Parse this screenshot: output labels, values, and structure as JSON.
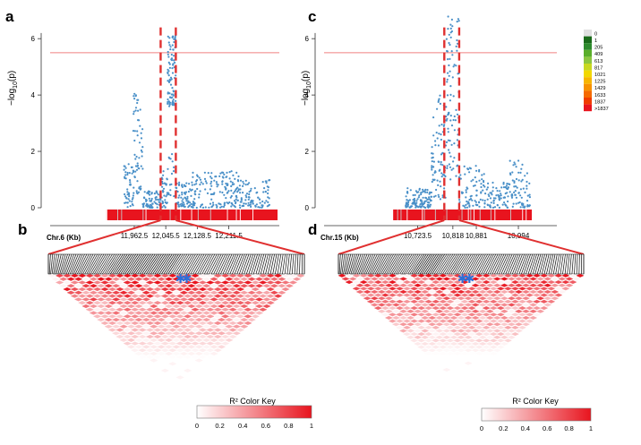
{
  "panel_labels": {
    "a": "a",
    "b": "b",
    "c": "c",
    "d": "d"
  },
  "colors": {
    "points": "#4a90c8",
    "threshold": "#f08080",
    "sig_box": "#e03030",
    "ld_high": "#e8141e",
    "bars_main": "#e8141e",
    "triangle_stroke": "#111111",
    "snp_marker": "#2e6fd8"
  },
  "legend": {
    "labels": [
      "0",
      "1",
      "205",
      "409",
      "613",
      "817",
      "1021",
      "1225",
      "1429",
      "1633",
      "1837",
      ">1837"
    ],
    "colors": [
      "#e0e0e0",
      "#1a6b1a",
      "#2e8b2e",
      "#5aae2a",
      "#8cc63f",
      "#c8d820",
      "#f2d800",
      "#f7b500",
      "#f79200",
      "#f56a00",
      "#f03c00",
      "#e8141e"
    ]
  },
  "color_key": {
    "title": "R² Color Key",
    "ticks": [
      "0",
      "0.2",
      "0.4",
      "0.6",
      "0.8",
      "1"
    ]
  },
  "chart_data": [
    {
      "id": "panel-a",
      "type": "scatter",
      "chromosome_label": "Chr.6 (Kb)",
      "ylabel_main": "−log",
      "ylabel_sub": "10",
      "ylabel_tail": "(p)",
      "ylim": [
        0,
        6.8
      ],
      "yticks": [
        "0",
        "2",
        "4",
        "6"
      ],
      "xlim": [
        11880,
        12340
      ],
      "xticks": [
        {
          "value": 11962.5,
          "label": "11,962.5"
        },
        {
          "value": 12045.5,
          "label": "12,045.5"
        },
        {
          "value": 12128.5,
          "label": "12,128.5"
        },
        {
          "value": 12211.5,
          "label": "12,211.5"
        }
      ],
      "threshold": 5.5,
      "sig_region": [
        12032,
        12072
      ],
      "snp_markers": [
        12050,
        12062
      ],
      "clusters": [
        {
          "x": [
            11935,
            11960
          ],
          "y": [
            0,
            1.6
          ],
          "n": 45
        },
        {
          "x": [
            11960,
            11985
          ],
          "y": [
            0.5,
            4.1
          ],
          "n": 60
        },
        {
          "x": [
            11985,
            12030
          ],
          "y": [
            0,
            0.6
          ],
          "n": 60
        },
        {
          "x": [
            12030,
            12050
          ],
          "y": [
            0,
            1.5
          ],
          "n": 45
        },
        {
          "x": [
            12050,
            12072
          ],
          "y": [
            3.6,
            6.2
          ],
          "n": 90
        },
        {
          "x": [
            12050,
            12072
          ],
          "y": [
            0.4,
            2.0
          ],
          "n": 18
        },
        {
          "x": [
            12072,
            12110
          ],
          "y": [
            0,
            0.9
          ],
          "n": 60
        },
        {
          "x": [
            12110,
            12240
          ],
          "y": [
            0,
            1.3
          ],
          "n": 160
        },
        {
          "x": [
            12240,
            12320
          ],
          "y": [
            0,
            1.0
          ],
          "n": 90
        }
      ]
    },
    {
      "id": "panel-c",
      "type": "scatter",
      "chromosome_label": "Chr.15 (Kb)",
      "ylabel_main": "−log",
      "ylabel_sub": "10",
      "ylabel_tail": "(p)",
      "ylim": [
        0,
        6.8
      ],
      "yticks": [
        "0",
        "2",
        "4",
        "6"
      ],
      "xlim": [
        10650,
        11030
      ],
      "xticks": [
        {
          "value": 10723.5,
          "label": "10,723.5"
        },
        {
          "value": 10818,
          "label": "10,818"
        },
        {
          "value": 10881,
          "label": "10,881"
        },
        {
          "value": 10994,
          "label": "10,994"
        }
      ],
      "threshold": 5.5,
      "sig_region": [
        10795,
        10835
      ],
      "snp_markers": [
        10808,
        10822
      ],
      "clusters": [
        {
          "x": [
            10690,
            10760
          ],
          "y": [
            0,
            0.7
          ],
          "n": 110
        },
        {
          "x": [
            10760,
            10800
          ],
          "y": [
            0.3,
            4.0
          ],
          "n": 80
        },
        {
          "x": [
            10800,
            10835
          ],
          "y": [
            1.0,
            6.8
          ],
          "n": 90
        },
        {
          "x": [
            10835,
            10910
          ],
          "y": [
            0,
            1.5
          ],
          "n": 80
        },
        {
          "x": [
            10910,
            10970
          ],
          "y": [
            0,
            0.9
          ],
          "n": 70
        },
        {
          "x": [
            10970,
            11025
          ],
          "y": [
            0,
            1.8
          ],
          "n": 70
        }
      ]
    }
  ]
}
